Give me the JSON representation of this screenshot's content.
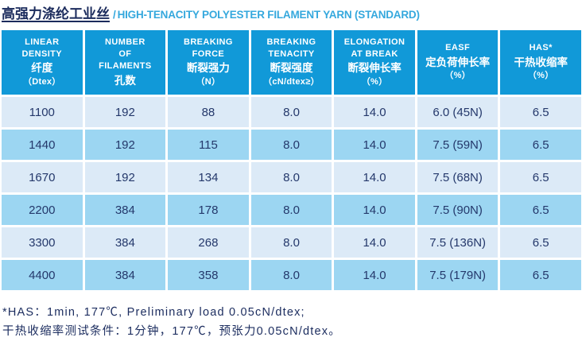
{
  "title": {
    "zh": "高强力涤纶工业丝",
    "separator": "/",
    "en": "HIGH-TENACITY POLYESTER FILAMENT YARN (STANDARD)"
  },
  "colors": {
    "header_bg": "#1199d8",
    "row_light": "#dceaf7",
    "row_dark": "#9cd6f2",
    "cell_text": "#24386b",
    "title_zh": "#1b2b5c",
    "title_en": "#35a8dd",
    "footnote_text": "#1d2e60"
  },
  "table": {
    "headers": [
      {
        "en": [
          "LINEAR",
          "DENSITY"
        ],
        "zh": "纤度",
        "unit": "（Dtex）"
      },
      {
        "en": [
          "NUMBER",
          "OF",
          "FILAMENTS"
        ],
        "zh": "孔数",
        "unit": ""
      },
      {
        "en": [
          "BREAKING",
          "FORCE"
        ],
        "zh": "断裂强力",
        "unit": "（N）"
      },
      {
        "en": [
          "BREAKING",
          "TENACITY"
        ],
        "zh": "断裂强度",
        "unit": "（cN/dtex≥）"
      },
      {
        "en": [
          "ELONGATION",
          "AT BREAK"
        ],
        "zh": "断裂伸长率",
        "unit": "（%）"
      },
      {
        "en": [
          "EASF"
        ],
        "zh": "定负荷伸长率",
        "unit": "（%）"
      },
      {
        "en": [
          "HAS*"
        ],
        "zh": "干热收缩率",
        "unit": "（%）"
      }
    ],
    "rows": [
      [
        "1100",
        "192",
        "88",
        "8.0",
        "14.0",
        "6.0 (45N)",
        "6.5"
      ],
      [
        "1440",
        "192",
        "115",
        "8.0",
        "14.0",
        "7.5 (59N)",
        "6.5"
      ],
      [
        "1670",
        "192",
        "134",
        "8.0",
        "14.0",
        "7.5 (68N)",
        "6.5"
      ],
      [
        "2200",
        "384",
        "178",
        "8.0",
        "14.0",
        "7.5 (90N)",
        "6.5"
      ],
      [
        "3300",
        "384",
        "268",
        "8.0",
        "14.0",
        "7.5 (136N)",
        "6.5"
      ],
      [
        "4400",
        "384",
        "358",
        "8.0",
        "14.0",
        "7.5 (179N)",
        "6.5"
      ]
    ]
  },
  "footnotes": [
    "*HAS：1min, 177℃, Preliminary load 0.05cN/dtex;",
    "干热收缩率测试条件：1分钟，177℃，预张力0.05cN/dtex。"
  ]
}
